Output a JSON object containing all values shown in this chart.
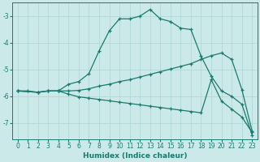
{
  "xlabel": "Humidex (Indice chaleur)",
  "background_color": "#cce9e9",
  "grid_color": "#b0d8d8",
  "line_color": "#1a7a6e",
  "xlim": [
    -0.5,
    23.5
  ],
  "ylim": [
    -7.6,
    -2.5
  ],
  "yticks": [
    -7,
    -6,
    -5,
    -4,
    -3
  ],
  "xticks": [
    0,
    1,
    2,
    3,
    4,
    5,
    6,
    7,
    8,
    9,
    10,
    11,
    12,
    13,
    14,
    15,
    16,
    17,
    18,
    19,
    20,
    21,
    22,
    23
  ],
  "line1_x": [
    0,
    1,
    2,
    3,
    4,
    5,
    6,
    7,
    8,
    9,
    10,
    11,
    12,
    13,
    14,
    15,
    16,
    17,
    18,
    19,
    20,
    21,
    22,
    23
  ],
  "line1_y": [
    -5.8,
    -5.8,
    -5.85,
    -5.8,
    -5.8,
    -5.55,
    -5.45,
    -5.15,
    -4.3,
    -3.55,
    -3.1,
    -3.1,
    -3.0,
    -2.75,
    -3.1,
    -3.2,
    -3.45,
    -3.5,
    -4.5,
    -5.25,
    -5.8,
    -6.0,
    -6.3,
    -7.45
  ],
  "line2_x": [
    0,
    2,
    3,
    4,
    5,
    6,
    7,
    8,
    9,
    10,
    11,
    12,
    13,
    14,
    15,
    16,
    17,
    18,
    19,
    20,
    21,
    22,
    23
  ],
  "line2_y": [
    -5.8,
    -5.85,
    -5.8,
    -5.8,
    -5.8,
    -5.78,
    -5.72,
    -5.62,
    -5.55,
    -5.45,
    -5.38,
    -5.28,
    -5.18,
    -5.08,
    -4.98,
    -4.88,
    -4.78,
    -4.62,
    -4.48,
    -4.38,
    -4.62,
    -5.75,
    -7.3
  ],
  "line3_x": [
    0,
    2,
    3,
    4,
    5,
    6,
    7,
    8,
    9,
    10,
    11,
    12,
    13,
    14,
    15,
    16,
    17,
    18,
    19,
    20,
    21,
    22,
    23
  ],
  "line3_y": [
    -5.8,
    -5.85,
    -5.8,
    -5.8,
    -5.92,
    -6.02,
    -6.07,
    -6.12,
    -6.17,
    -6.22,
    -6.27,
    -6.32,
    -6.37,
    -6.42,
    -6.47,
    -6.52,
    -6.57,
    -6.62,
    -5.38,
    -6.18,
    -6.48,
    -6.78,
    -7.35
  ]
}
